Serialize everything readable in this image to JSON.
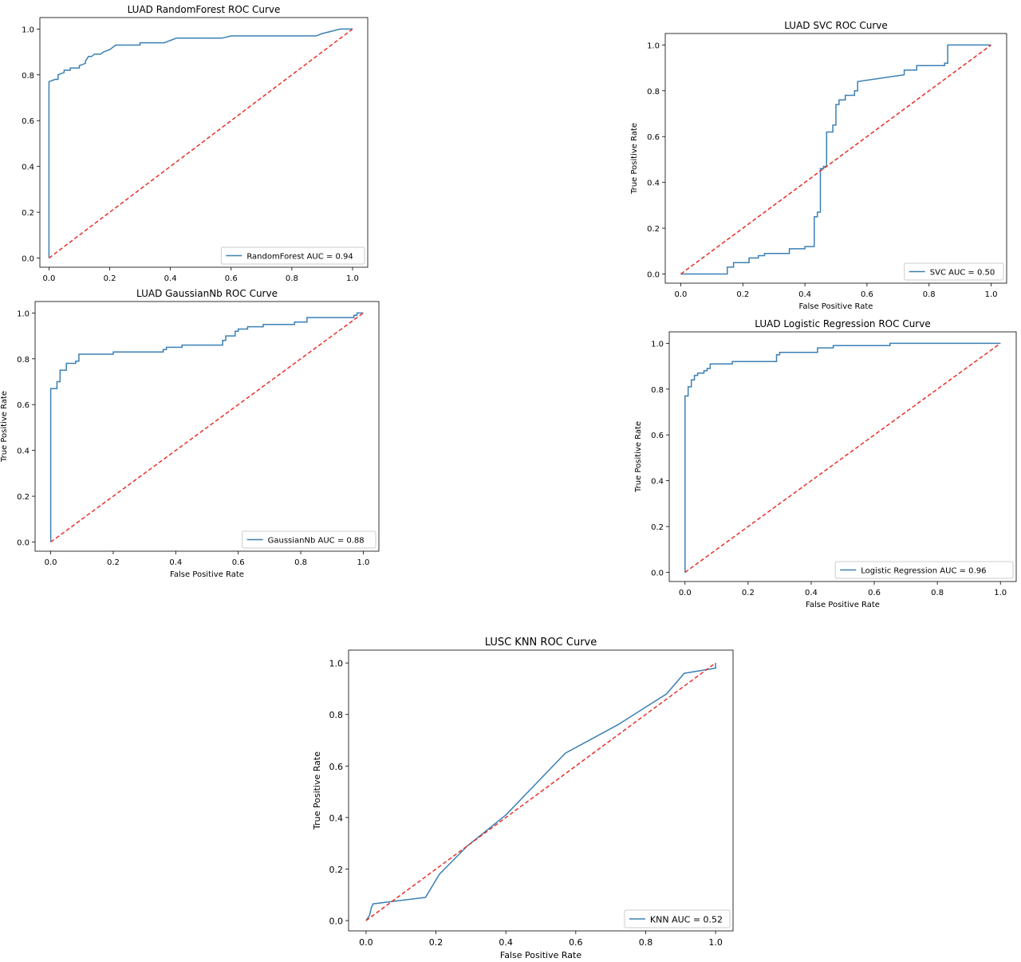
{
  "chart_data": [
    {
      "type": "line",
      "title": "LUAD RandomForest ROC Curve",
      "xlabel": "",
      "ylabel": "",
      "xlim": [
        -0.03,
        1.05
      ],
      "ylim": [
        -0.04,
        1.05
      ],
      "xticks": [
        "0.0",
        "0.2",
        "0.4",
        "0.6",
        "0.8",
        "1.0"
      ],
      "yticks": [
        "0.0",
        "0.2",
        "0.4",
        "0.6",
        "0.8",
        "1.0"
      ],
      "legend_position": "lower-right",
      "colors": {
        "roc": "#3b80b4",
        "chance": "#e8302a"
      },
      "series": [
        {
          "name": "RandomForest AUC = 0.94",
          "x": [
            0,
            0,
            0.02,
            0.03,
            0.03,
            0.05,
            0.05,
            0.07,
            0.07,
            0.1,
            0.1,
            0.12,
            0.12,
            0.13,
            0.14,
            0.15,
            0.17,
            0.18,
            0.2,
            0.22,
            0.3,
            0.3,
            0.38,
            0.42,
            0.57,
            0.6,
            0.88,
            0.9,
            0.96,
            1.0
          ],
          "y": [
            0,
            0.77,
            0.78,
            0.78,
            0.8,
            0.81,
            0.82,
            0.82,
            0.83,
            0.83,
            0.84,
            0.85,
            0.86,
            0.88,
            0.88,
            0.89,
            0.89,
            0.9,
            0.91,
            0.93,
            0.93,
            0.94,
            0.94,
            0.96,
            0.96,
            0.97,
            0.97,
            0.98,
            1.0,
            1.0
          ]
        },
        {
          "name": "",
          "x": [
            0,
            1
          ],
          "y": [
            0,
            1
          ],
          "dashed": true
        }
      ]
    },
    {
      "type": "line",
      "title": "LUAD SVC ROC Curve",
      "xlabel": "False Positive Rate",
      "ylabel": "True Positive Rate",
      "xlim": [
        -0.05,
        1.05
      ],
      "ylim": [
        -0.04,
        1.05
      ],
      "xticks": [
        "0.0",
        "0.2",
        "0.4",
        "0.6",
        "0.8",
        "1.0"
      ],
      "yticks": [
        "0.0",
        "0.2",
        "0.4",
        "0.6",
        "0.8",
        "1.0"
      ],
      "legend_position": "lower-right",
      "colors": {
        "roc": "#3b80b4",
        "chance": "#e8302a"
      },
      "series": [
        {
          "name": "SVC AUC = 0.50",
          "x": [
            0,
            0.15,
            0.15,
            0.17,
            0.17,
            0.22,
            0.22,
            0.25,
            0.25,
            0.27,
            0.27,
            0.35,
            0.35,
            0.4,
            0.4,
            0.43,
            0.43,
            0.44,
            0.44,
            0.45,
            0.45,
            0.46,
            0.46,
            0.47,
            0.47,
            0.49,
            0.49,
            0.5,
            0.5,
            0.51,
            0.51,
            0.53,
            0.53,
            0.56,
            0.56,
            0.57,
            0.57,
            0.72,
            0.72,
            0.76,
            0.76,
            0.85,
            0.85,
            0.86,
            0.86,
            1.0
          ],
          "y": [
            0,
            0,
            0.03,
            0.03,
            0.05,
            0.05,
            0.07,
            0.07,
            0.08,
            0.08,
            0.09,
            0.09,
            0.11,
            0.11,
            0.12,
            0.12,
            0.25,
            0.25,
            0.27,
            0.27,
            0.46,
            0.46,
            0.47,
            0.47,
            0.62,
            0.62,
            0.65,
            0.65,
            0.74,
            0.74,
            0.76,
            0.76,
            0.78,
            0.78,
            0.8,
            0.8,
            0.84,
            0.87,
            0.89,
            0.89,
            0.91,
            0.91,
            0.92,
            0.92,
            1.0,
            1.0
          ]
        },
        {
          "name": "",
          "x": [
            0,
            1
          ],
          "y": [
            0,
            1
          ],
          "dashed": true
        }
      ]
    },
    {
      "type": "line",
      "title": "LUAD GaussianNb ROC Curve",
      "xlabel": "False Positive Rate",
      "ylabel": "True Positive Rate",
      "xlim": [
        -0.05,
        1.05
      ],
      "ylim": [
        -0.04,
        1.05
      ],
      "xticks": [
        "0.0",
        "0.2",
        "0.4",
        "0.6",
        "0.8",
        "1.0"
      ],
      "yticks": [
        "0.0",
        "0.2",
        "0.4",
        "0.6",
        "0.8",
        "1.0"
      ],
      "legend_position": "lower-right",
      "colors": {
        "roc": "#3b80b4",
        "chance": "#e8302a"
      },
      "series": [
        {
          "name": "GaussianNb AUC = 0.88",
          "x": [
            0,
            0,
            0.01,
            0.01,
            0.02,
            0.02,
            0.03,
            0.03,
            0.05,
            0.05,
            0.08,
            0.08,
            0.09,
            0.09,
            0.2,
            0.2,
            0.36,
            0.36,
            0.37,
            0.37,
            0.42,
            0.42,
            0.55,
            0.55,
            0.56,
            0.56,
            0.59,
            0.59,
            0.6,
            0.6,
            0.63,
            0.63,
            0.68,
            0.68,
            0.78,
            0.78,
            0.82,
            0.82,
            0.97,
            0.97,
            0.98,
            0.98,
            1.0
          ],
          "y": [
            0,
            0.67,
            0.67,
            0.67,
            0.67,
            0.7,
            0.7,
            0.75,
            0.75,
            0.78,
            0.78,
            0.79,
            0.79,
            0.82,
            0.82,
            0.83,
            0.83,
            0.84,
            0.84,
            0.85,
            0.85,
            0.86,
            0.86,
            0.88,
            0.88,
            0.9,
            0.9,
            0.92,
            0.92,
            0.93,
            0.93,
            0.94,
            0.94,
            0.95,
            0.95,
            0.96,
            0.96,
            0.98,
            0.98,
            0.99,
            0.99,
            1.0,
            1.0
          ]
        },
        {
          "name": "",
          "x": [
            0,
            1
          ],
          "y": [
            0,
            1
          ],
          "dashed": true
        }
      ]
    },
    {
      "type": "line",
      "title": "LUAD Logistic Regression ROC Curve",
      "xlabel": "False Positive Rate",
      "ylabel": "True Positive Rate",
      "xlim": [
        -0.05,
        1.05
      ],
      "ylim": [
        -0.04,
        1.05
      ],
      "xticks": [
        "0.0",
        "0.2",
        "0.4",
        "0.6",
        "0.8",
        "1.0"
      ],
      "yticks": [
        "0.0",
        "0.2",
        "0.4",
        "0.6",
        "0.8",
        "1.0"
      ],
      "legend_position": "lower-right",
      "colors": {
        "roc": "#3b80b4",
        "chance": "#e8302a"
      },
      "series": [
        {
          "name": "Logistic Regression AUC = 0.96",
          "x": [
            0,
            0,
            0.01,
            0.01,
            0.02,
            0.02,
            0.03,
            0.03,
            0.04,
            0.04,
            0.06,
            0.06,
            0.07,
            0.07,
            0.08,
            0.08,
            0.15,
            0.15,
            0.29,
            0.29,
            0.3,
            0.3,
            0.42,
            0.42,
            0.47,
            0.47,
            0.65,
            0.65,
            1.0
          ],
          "y": [
            0,
            0.77,
            0.77,
            0.81,
            0.81,
            0.84,
            0.84,
            0.86,
            0.86,
            0.87,
            0.87,
            0.88,
            0.88,
            0.89,
            0.89,
            0.91,
            0.91,
            0.92,
            0.92,
            0.95,
            0.95,
            0.96,
            0.96,
            0.98,
            0.98,
            0.99,
            0.99,
            1.0,
            1.0
          ]
        },
        {
          "name": "",
          "x": [
            0,
            1
          ],
          "y": [
            0,
            1
          ],
          "dashed": true
        }
      ]
    },
    {
      "type": "line",
      "title": "LUSC KNN ROC Curve",
      "xlabel": "False Positive Rate",
      "ylabel": "True Positive Rate",
      "xlim": [
        -0.05,
        1.05
      ],
      "ylim": [
        -0.04,
        1.05
      ],
      "xticks": [
        "0.0",
        "0.2",
        "0.4",
        "0.6",
        "0.8",
        "1.0"
      ],
      "yticks": [
        "0.0",
        "0.2",
        "0.4",
        "0.6",
        "0.8",
        "1.0"
      ],
      "legend_position": "lower-right",
      "colors": {
        "roc": "#3b80b4",
        "chance": "#e8302a"
      },
      "series": [
        {
          "name": "KNN AUC = 0.52",
          "x": [
            0,
            0.01,
            0.015,
            0.02,
            0.17,
            0.21,
            0.29,
            0.4,
            0.57,
            0.72,
            0.86,
            0.91,
            1.0,
            1.0
          ],
          "y": [
            0,
            0.02,
            0.05,
            0.065,
            0.09,
            0.18,
            0.29,
            0.41,
            0.65,
            0.76,
            0.88,
            0.96,
            0.98,
            1.0
          ]
        },
        {
          "name": "",
          "x": [
            0,
            1
          ],
          "y": [
            0,
            1
          ],
          "dashed": true
        }
      ]
    }
  ]
}
